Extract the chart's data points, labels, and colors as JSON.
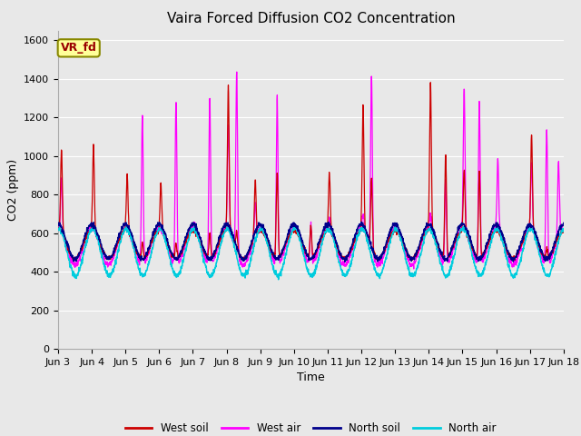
{
  "title": "Vaira Forced Diffusion CO2 Concentration",
  "xlabel": "Time",
  "ylabel": "CO2 (ppm)",
  "ylim": [
    0,
    1650
  ],
  "yticks": [
    0,
    200,
    400,
    600,
    800,
    1000,
    1200,
    1400,
    1600
  ],
  "xtick_labels": [
    "Jun 3",
    "Jun 4",
    "Jun 5",
    "Jun 6",
    "Jun 7",
    "Jun 8",
    "Jun 9",
    "Jun 10",
    "Jun 11",
    "Jun 12",
    "Jun 13",
    "Jun 14",
    "Jun 15",
    "Jun 16",
    "Jun 17",
    "Jun 18"
  ],
  "legend_entries": [
    "West soil",
    "West air",
    "North soil",
    "North air"
  ],
  "legend_colors": [
    "#cc0000",
    "#ff00ff",
    "#00008b",
    "#00ccdd"
  ],
  "annotation_text": "VR_fd",
  "annotation_color": "#990000",
  "annotation_bg": "#ffff99",
  "plot_bg_color": "#e8e8e8",
  "fig_bg_color": "#e8e8e8",
  "title_fontsize": 11,
  "axis_label_fontsize": 9,
  "tick_fontsize": 8,
  "line_colors": {
    "west_soil": "#cc0000",
    "west_air": "#ff00ff",
    "north_soil": "#00008b",
    "north_air": "#00ccdd"
  }
}
